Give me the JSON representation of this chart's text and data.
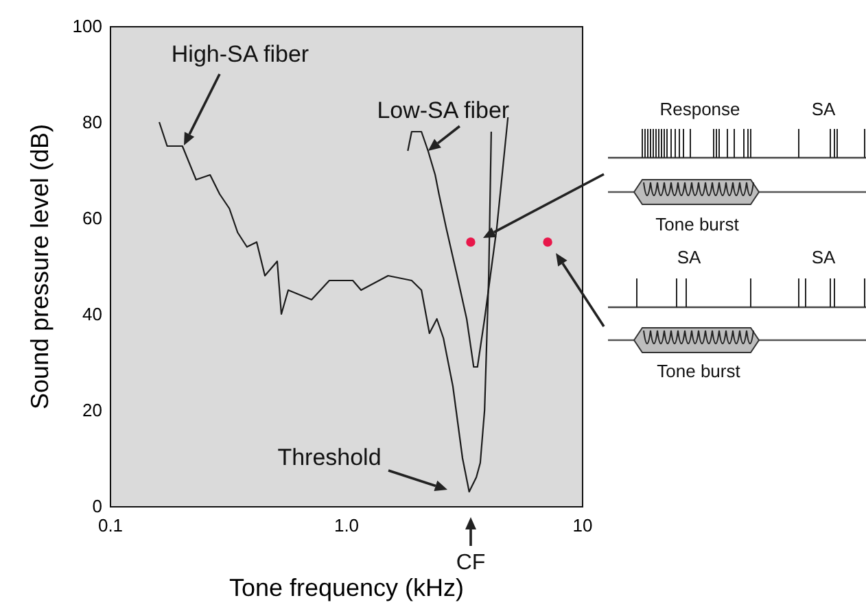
{
  "chart_data": {
    "type": "line",
    "xlabel": "Tone frequency (kHz)",
    "ylabel": "Sound pressure level (dB)",
    "log": "x",
    "xlim": [
      0.1,
      10
    ],
    "xticks": [
      0.1,
      {
        "value": 1,
        "label": "1.0"
      },
      10
    ],
    "ylim": [
      0,
      100
    ],
    "yticks": [
      0,
      20,
      40,
      60,
      80,
      100
    ],
    "series": [
      {
        "color": "#1a1a1a",
        "x": [
          0.162,
          0.175,
          0.203,
          0.232,
          0.266,
          0.292,
          0.321,
          0.348,
          0.381,
          0.419,
          0.454,
          0.512,
          0.533,
          0.57,
          0.716,
          0.851,
          1.07,
          1.16,
          1.51,
          1.9,
          2.09,
          2.26,
          2.43,
          2.59,
          2.84,
          3.12,
          3.33,
          3.57,
          3.71,
          3.87,
          4.03,
          4.13
        ],
        "values": [
          80,
          75,
          75,
          68,
          69,
          65,
          62,
          57,
          54,
          55,
          48,
          51,
          40,
          45,
          43,
          47,
          47,
          45,
          48,
          47,
          45,
          36,
          39,
          35,
          25,
          10,
          3,
          6,
          9,
          20,
          48,
          78
        ]
      },
      {
        "color": "#1a1a1a",
        "x": [
          1.83,
          1.9,
          2.09,
          2.23,
          2.39,
          2.48,
          2.66,
          2.96,
          3.25,
          3.48,
          3.61,
          3.87,
          4.36,
          4.86
        ],
        "values": [
          74,
          78,
          78,
          74,
          69,
          65,
          58,
          48,
          39,
          29,
          29,
          39,
          58,
          81
        ]
      },
      {
        "type": "scatter",
        "marker": "circle",
        "color": "#e8174a",
        "x": [
          3.38,
          7.16
        ],
        "values": [
          55,
          55
        ]
      }
    ],
    "annotations": [
      "High-SA fiber",
      {
        "text": "Low-SA fiber",
        "x": 2.23,
        "y": 74
      },
      "Threshold",
      "CF",
      "Response",
      "SA",
      "Tone burst",
      "SA",
      "SA",
      "Tone burst"
    ]
  }
}
